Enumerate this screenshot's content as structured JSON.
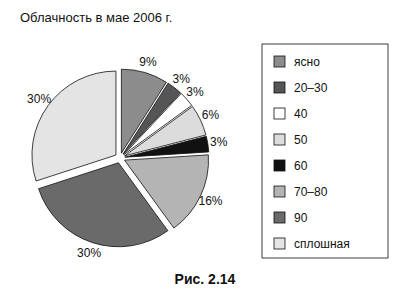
{
  "chart_data": {
    "type": "pie",
    "title": "Облачность в мае 2006 г.",
    "caption": "Рис. 2.14",
    "categories": [
      "ясно",
      "20–30",
      "40",
      "50",
      "60",
      "70–80",
      "90",
      "сплошная"
    ],
    "values": [
      9,
      3,
      3,
      6,
      3,
      16,
      30,
      30
    ],
    "value_labels": [
      "9%",
      "3%",
      "3%",
      "6%",
      "3%",
      "16%",
      "30%",
      "30%"
    ],
    "colors": [
      "#8c8c8c",
      "#555555",
      "#ffffff",
      "#dcdcdc",
      "#111111",
      "#b4b4b4",
      "#6a6a6a",
      "#e4e4e4"
    ],
    "data_labels": true,
    "legend": "right"
  }
}
